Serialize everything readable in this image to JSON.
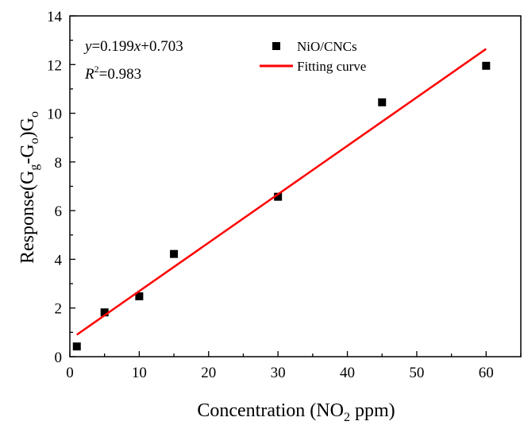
{
  "chart_data": {
    "type": "scatter",
    "xlabel": {
      "main": "Concentration (NO",
      "sub": "2",
      "tail": " ppm)"
    },
    "ylabel": {
      "p1": "Response(G",
      "sub1": "g",
      "p2": "-G",
      "sub2": "o",
      "p3": ")G",
      "sub3": "o"
    },
    "xlim": [
      0,
      65
    ],
    "ylim": [
      0,
      14
    ],
    "xticks": [
      "0",
      "10",
      "20",
      "30",
      "40",
      "50",
      "60"
    ],
    "yticks": [
      "0",
      "2",
      "4",
      "6",
      "8",
      "10",
      "12",
      "14"
    ],
    "series": [
      {
        "name": "NiO/CNCs",
        "kind": "scatter",
        "marker": "square",
        "color": "#000000",
        "x": [
          1,
          5,
          10,
          15,
          30,
          45,
          60
        ],
        "y": [
          0.42,
          1.82,
          2.48,
          4.22,
          6.57,
          10.45,
          11.95
        ]
      },
      {
        "name": "Fitting curve",
        "kind": "line",
        "color": "#ff0000",
        "x": [
          1,
          60
        ],
        "y": [
          0.902,
          12.643
        ]
      }
    ],
    "annotation": {
      "line1_var": "y",
      "line1_rest": "=0.199",
      "line1_var2": "x",
      "line1_tail": "+0.703",
      "line2_var": "R",
      "line2_sup": "2",
      "line2_tail": "=0.983"
    },
    "legend_position": "top-center",
    "grid": false
  }
}
